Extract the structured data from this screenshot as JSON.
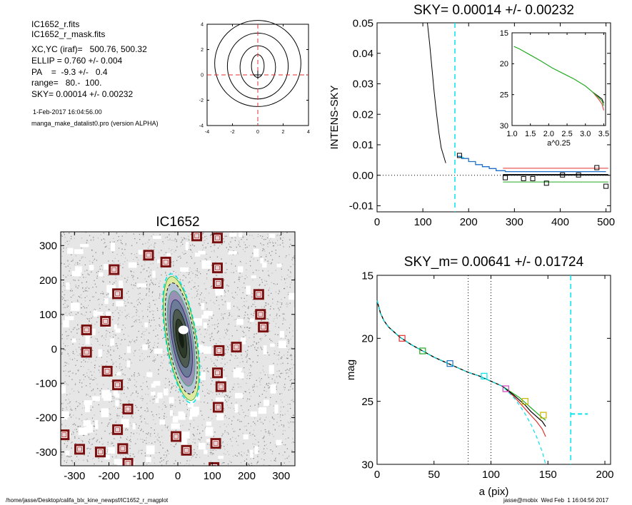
{
  "info": {
    "lines_large": [
      "IC1652_r.fits",
      "IC1652_r_mask.fits",
      "XC,YC (iraf)=   500.76, 500.32",
      "ELLIP = 0.760 +/- 0.004",
      "PA    =  -9.3 +/-   0.4",
      "range=   80.-  100.",
      "SKY= 0.00014 +/- 0.00232"
    ],
    "lines_small": [
      "1-Feb-2017 16:04:56.00",
      "manga_make_datalist0.pro (version ALPHA)"
    ]
  },
  "footer": {
    "left": "/home/jasse/Desktop/califa_blx_kine_newpsf/IC1652_r_magplot",
    "right": "jasse@mobix  Wed Feb  1 16:04:56 2017"
  },
  "colors": {
    "cyan": "#00e5ee",
    "red": "#e03030",
    "green": "#22aa22",
    "blue": "#1f6fc9",
    "black": "#000000",
    "dark_red": "#7a1010",
    "magenta": "#d040c0",
    "yellow": "#c8b400"
  },
  "chart_data": [
    {
      "type": "contour",
      "id": "center-contour",
      "title": "",
      "xlim": [
        -4,
        4
      ],
      "ylim": [
        -4,
        4
      ],
      "xticks": [
        -4,
        -2,
        0,
        2,
        4
      ],
      "yticks": [
        -4,
        -2,
        0,
        2,
        4
      ],
      "contours": [
        {
          "cx": 0.0,
          "cy": 0.7,
          "rx": 0.5,
          "ry": 0.9
        },
        {
          "cx": 0.0,
          "cy": 0.6,
          "rx": 1.4,
          "ry": 1.7
        },
        {
          "cx": 0.0,
          "cy": 0.7,
          "rx": 2.4,
          "ry": 2.6
        },
        {
          "cx": 0.0,
          "cy": 0.9,
          "rx": 3.4,
          "ry": 3.4
        }
      ],
      "crosshair": [
        0,
        0
      ]
    },
    {
      "type": "line",
      "id": "sky-profile",
      "title": "SKY= 0.00014 +/- 0.00232",
      "ylabel": "INTENS-SKY",
      "xlabel": "",
      "xlim": [
        0,
        510
      ],
      "ylim": [
        -0.012,
        0.05
      ],
      "xticks": [
        0,
        100,
        200,
        300,
        400,
        500
      ],
      "yticks": [
        -0.01,
        0.0,
        0.01,
        0.02,
        0.03,
        0.04,
        0.05
      ],
      "ytick_labels": [
        "-0.01",
        "0.00",
        "0.01",
        "0.02",
        "0.03",
        "0.04",
        "0.05"
      ],
      "vline_x": 170,
      "profile_x": [
        110,
        115,
        120,
        125,
        130,
        135,
        140,
        145,
        150
      ],
      "profile_y": [
        0.05,
        0.043,
        0.035,
        0.027,
        0.02,
        0.014,
        0.009,
        0.0065,
        0.004
      ],
      "step_x": [
        175,
        185,
        200,
        215,
        230,
        245,
        260,
        280,
        320,
        380,
        500
      ],
      "step_y": [
        0.0062,
        0.0055,
        0.0045,
        0.0035,
        0.0028,
        0.0022,
        0.0015,
        0.0012,
        0.0012,
        0.0012,
        0.0012
      ],
      "squares": [
        {
          "x": 180,
          "y": 0.0065
        },
        {
          "x": 280,
          "y": -0.0008
        },
        {
          "x": 320,
          "y": -0.0011
        },
        {
          "x": 340,
          "y": -0.0011
        },
        {
          "x": 370,
          "y": -0.0026
        },
        {
          "x": 405,
          "y": 0.0001
        },
        {
          "x": 440,
          "y": 0.0001
        },
        {
          "x": 480,
          "y": 0.0025
        },
        {
          "x": 500,
          "y": -0.0036
        }
      ],
      "sky_levels": {
        "upper": 0.0023,
        "mean": 0.00014,
        "lower": -0.0022
      }
    },
    {
      "type": "line",
      "id": "sky-inset",
      "title": "",
      "xlabel": "a^0.25",
      "xlim": [
        1.0,
        3.55
      ],
      "ylim": [
        30,
        15
      ],
      "inverted_y": true,
      "xticks": [
        1.0,
        1.5,
        2.0,
        2.5,
        3.0,
        3.5
      ],
      "xtick_labels": [
        "1.0",
        "1.5",
        "2.0",
        "2.5",
        "3.0",
        "3.5"
      ],
      "yticks": [
        15,
        20,
        25,
        30
      ],
      "x": [
        1.05,
        1.2,
        1.5,
        1.8,
        2.1,
        2.4,
        2.7,
        3.0,
        3.2,
        3.35,
        3.45,
        3.5
      ],
      "y": [
        17.2,
        17.6,
        18.6,
        19.6,
        20.7,
        21.6,
        22.5,
        23.6,
        24.6,
        25.4,
        26.0,
        26.8
      ]
    },
    {
      "type": "image",
      "id": "galaxy-map",
      "title": "IC1652",
      "xlim": [
        -340,
        340
      ],
      "ylim": [
        -340,
        340
      ],
      "xticks": [
        -300,
        -200,
        -100,
        0,
        100,
        200,
        300
      ],
      "yticks": [
        -300,
        -200,
        -100,
        0,
        100,
        200,
        300
      ],
      "galaxy": {
        "cx": 10,
        "cy": 30,
        "a": 190,
        "b": 45,
        "angle_deg": -9.3
      },
      "mask_boxes": [
        [
          55,
          328
        ],
        [
          115,
          322
        ],
        [
          -85,
          272
        ],
        [
          -35,
          252
        ],
        [
          -185,
          230
        ],
        [
          115,
          235
        ],
        [
          117,
          190
        ],
        [
          -175,
          160
        ],
        [
          235,
          158
        ],
        [
          240,
          100
        ],
        [
          248,
          63
        ],
        [
          -210,
          80
        ],
        [
          -265,
          55
        ],
        [
          -265,
          -10
        ],
        [
          -205,
          -65
        ],
        [
          120,
          -5
        ],
        [
          170,
          5
        ],
        [
          -175,
          -105
        ],
        [
          115,
          -70
        ],
        [
          125,
          -110
        ],
        [
          -145,
          -175
        ],
        [
          117,
          -170
        ],
        [
          -175,
          -235
        ],
        [
          -330,
          -250
        ],
        [
          -285,
          -292
        ],
        [
          -225,
          -300
        ],
        [
          -160,
          -290
        ],
        [
          -5,
          -255
        ],
        [
          25,
          -295
        ],
        [
          110,
          -275
        ],
        [
          -145,
          -333
        ],
        [
          105,
          -345
        ]
      ]
    },
    {
      "type": "line",
      "id": "mag-profile",
      "title": "SKY_m=  0.00641 +/- 0.01724",
      "xlabel": "a (pix)",
      "ylabel": "mag",
      "xlim": [
        0,
        205
      ],
      "ylim": [
        30,
        15
      ],
      "inverted_y": true,
      "xticks": [
        0,
        50,
        100,
        150,
        200
      ],
      "yticks": [
        15,
        20,
        25,
        30
      ],
      "vlines_dotted": [
        80,
        100
      ],
      "vline_cyan": 170,
      "cyan_hseg": {
        "x": [
          170,
          185
        ],
        "y": 26.0
      },
      "x": [
        0,
        3,
        6,
        10,
        15,
        20,
        30,
        40,
        50,
        60,
        70,
        80,
        90,
        100,
        110,
        120,
        125,
        130,
        135,
        140,
        145,
        148
      ],
      "series": [
        {
          "color": "green",
          "y": [
            17.0,
            18.0,
            18.6,
            19.1,
            19.5,
            19.9,
            20.5,
            21.0,
            21.5,
            21.9,
            22.3,
            22.7,
            23.0,
            23.4,
            23.8,
            24.4,
            24.7,
            25.1,
            25.5,
            25.9,
            26.3,
            26.5
          ]
        },
        {
          "color": "red",
          "y": [
            17.0,
            18.0,
            18.6,
            19.1,
            19.5,
            19.9,
            20.5,
            21.0,
            21.5,
            21.9,
            22.3,
            22.7,
            23.0,
            23.4,
            23.8,
            24.6,
            25.1,
            25.6,
            26.1,
            26.6,
            27.2,
            27.8
          ]
        },
        {
          "color": "black",
          "y": [
            17.0,
            18.0,
            18.6,
            19.1,
            19.5,
            19.9,
            20.5,
            21.0,
            21.5,
            21.9,
            22.3,
            22.7,
            23.0,
            23.4,
            23.8,
            24.5,
            24.9,
            25.3,
            25.8,
            26.2,
            26.6,
            27.0
          ]
        },
        {
          "color": "cyan",
          "dashed": true,
          "y": [
            17.0,
            18.0,
            18.6,
            19.1,
            19.5,
            19.9,
            20.5,
            21.0,
            21.5,
            21.9,
            22.3,
            22.7,
            23.0,
            23.4,
            23.8,
            24.7,
            25.3,
            26.0,
            26.8,
            27.8,
            29.0,
            30.0
          ]
        }
      ],
      "markers": [
        {
          "x": 22,
          "y": 20.0,
          "color": "red"
        },
        {
          "x": 40,
          "y": 21.0,
          "color": "green"
        },
        {
          "x": 64,
          "y": 22.0,
          "color": "blue"
        },
        {
          "x": 94,
          "y": 23.0,
          "color": "cyan"
        },
        {
          "x": 113,
          "y": 24.0,
          "color": "magenta"
        },
        {
          "x": 130,
          "y": 25.0,
          "color": "yellow"
        },
        {
          "x": 146,
          "y": 26.1,
          "color": "yellow"
        }
      ]
    }
  ]
}
